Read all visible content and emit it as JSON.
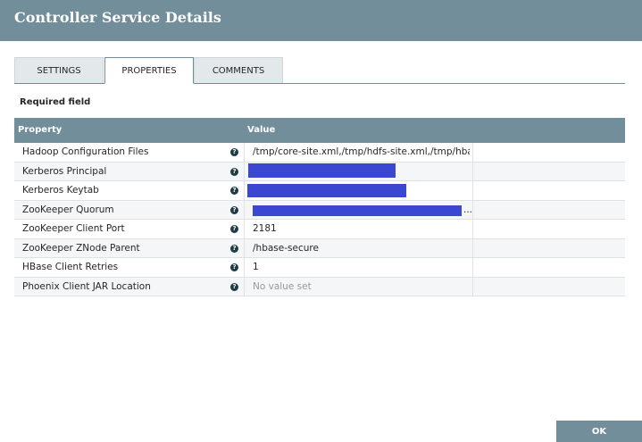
{
  "header": {
    "title": "Controller Service Details"
  },
  "tabs": [
    "SETTINGS",
    "PROPERTIES",
    "COMMENTS"
  ],
  "required_note": "Required field",
  "table": {
    "columns": [
      "Property",
      "Value"
    ],
    "rows": [
      [
        "Hadoop Configuration Files",
        "/tmp/core-site.xml,/tmp/hdfs-site.xml,/tmp/hbas..."
      ],
      [
        "Kerberos Principal",
        null
      ],
      [
        "Kerberos Keytab",
        null
      ],
      [
        "ZooKeeper Quorum",
        "..."
      ],
      [
        "ZooKeeper Client Port",
        "2181"
      ],
      [
        "ZooKeeper ZNode Parent",
        "/hbase-secure"
      ],
      [
        "HBase Client Retries",
        "1"
      ],
      [
        "Phoenix Client JAR Location",
        "No value set"
      ]
    ]
  },
  "buttons": {
    "ok": "OK"
  }
}
